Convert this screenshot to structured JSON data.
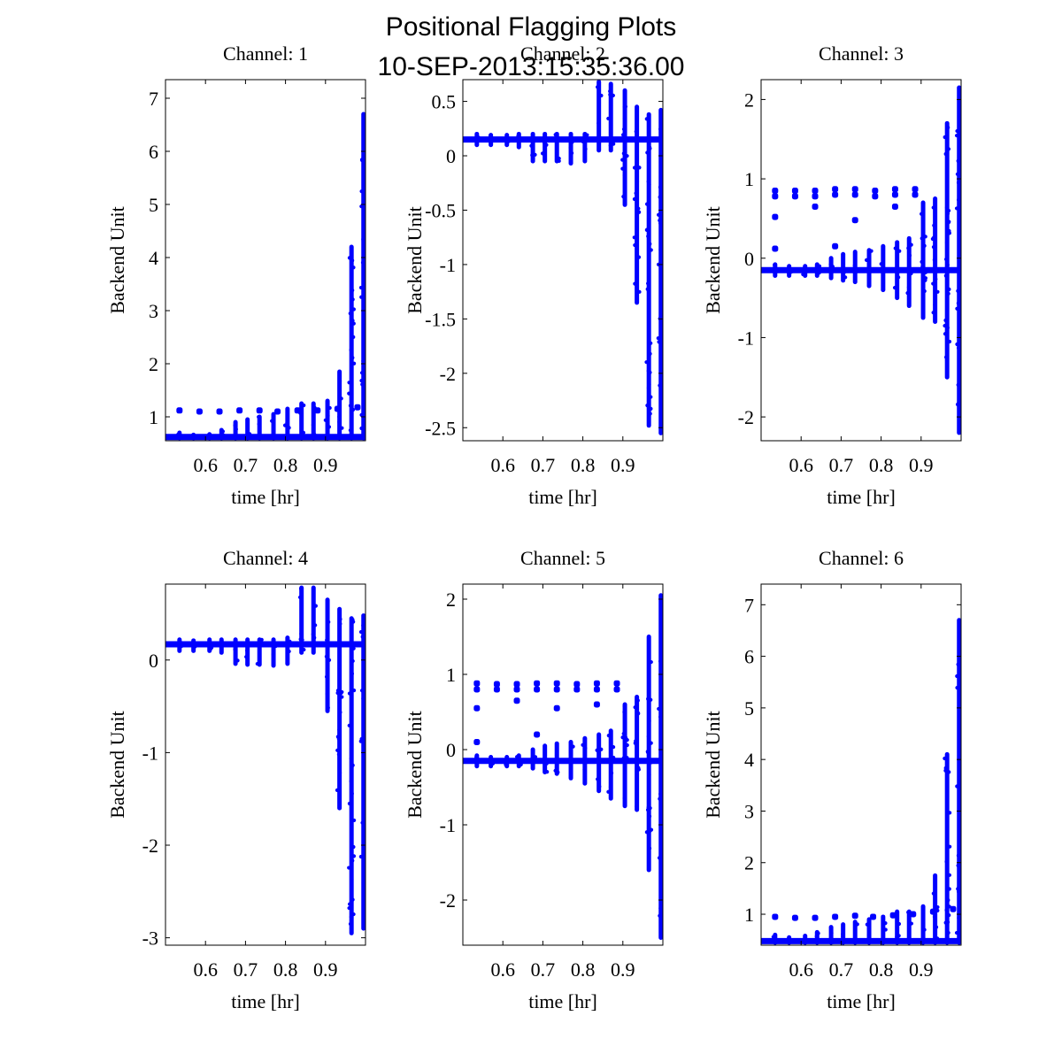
{
  "figure": {
    "title_line1": "Positional Flagging Plots",
    "title_line2": "10-SEP-2013:15:35:36.00"
  },
  "colors": {
    "series": "#0000ff",
    "axes": "#000000",
    "background": "#ffffff"
  },
  "chart_data": [
    {
      "type": "scatter",
      "title": "Channel: 1",
      "xlabel": "time [hr]",
      "ylabel": "Backend Unit",
      "xlim": [
        0.5,
        1.0
      ],
      "ylim": [
        0.55,
        7.35
      ],
      "xticks": [
        0.6,
        0.7,
        0.8,
        0.9
      ],
      "xtick_labels": [
        "0.6",
        "0.7",
        "0.8",
        "0.9"
      ],
      "yticks": [
        1,
        2,
        3,
        4,
        5,
        6,
        7
      ],
      "ytick_labels": [
        "1",
        "2",
        "3",
        "4",
        "5",
        "6",
        "7"
      ],
      "grid": false,
      "baseline": 0.62,
      "vertical_bursts": [
        {
          "x": 0.535,
          "low": 0.6,
          "high": 0.7
        },
        {
          "x": 0.57,
          "low": 0.6,
          "high": 0.66
        },
        {
          "x": 0.61,
          "low": 0.6,
          "high": 0.67
        },
        {
          "x": 0.64,
          "low": 0.6,
          "high": 0.75
        },
        {
          "x": 0.675,
          "low": 0.6,
          "high": 0.9
        },
        {
          "x": 0.705,
          "low": 0.6,
          "high": 0.95
        },
        {
          "x": 0.735,
          "low": 0.6,
          "high": 1.0
        },
        {
          "x": 0.77,
          "low": 0.6,
          "high": 1.05
        },
        {
          "x": 0.805,
          "low": 0.6,
          "high": 1.15
        },
        {
          "x": 0.84,
          "low": 0.6,
          "high": 1.25
        },
        {
          "x": 0.87,
          "low": 0.6,
          "high": 1.25
        },
        {
          "x": 0.905,
          "low": 0.6,
          "high": 1.3
        },
        {
          "x": 0.935,
          "low": 0.6,
          "high": 1.85
        },
        {
          "x": 0.965,
          "low": 0.6,
          "high": 4.2
        },
        {
          "x": 0.995,
          "low": 0.6,
          "high": 6.7
        }
      ],
      "outliers": [
        {
          "x": 0.535,
          "y": 1.12
        },
        {
          "x": 0.585,
          "y": 1.1
        },
        {
          "x": 0.635,
          "y": 1.1
        },
        {
          "x": 0.685,
          "y": 1.12
        },
        {
          "x": 0.735,
          "y": 1.12
        },
        {
          "x": 0.78,
          "y": 1.1
        },
        {
          "x": 0.83,
          "y": 1.12
        },
        {
          "x": 0.88,
          "y": 1.12
        },
        {
          "x": 0.93,
          "y": 1.15
        },
        {
          "x": 0.98,
          "y": 1.18
        }
      ]
    },
    {
      "type": "scatter",
      "title": "Channel: 2",
      "xlabel": "time [hr]",
      "ylabel": "Backend Unit",
      "xlim": [
        0.5,
        1.0
      ],
      "ylim": [
        -2.62,
        0.7
      ],
      "xticks": [
        0.6,
        0.7,
        0.8,
        0.9
      ],
      "xtick_labels": [
        "0.6",
        "0.7",
        "0.8",
        "0.9"
      ],
      "yticks": [
        0.5,
        0,
        -0.5,
        -1,
        -1.5,
        -2,
        -2.5
      ],
      "ytick_labels": [
        "0.5",
        "0",
        "-0.5",
        "-1",
        "-1.5",
        "-2",
        "-2.5"
      ],
      "grid": false,
      "baseline": 0.15,
      "vertical_bursts": [
        {
          "x": 0.535,
          "low": 0.1,
          "high": 0.2
        },
        {
          "x": 0.57,
          "low": 0.1,
          "high": 0.19
        },
        {
          "x": 0.61,
          "low": 0.1,
          "high": 0.19
        },
        {
          "x": 0.64,
          "low": 0.08,
          "high": 0.2
        },
        {
          "x": 0.675,
          "low": -0.05,
          "high": 0.2
        },
        {
          "x": 0.705,
          "low": -0.05,
          "high": 0.2
        },
        {
          "x": 0.735,
          "low": -0.05,
          "high": 0.2
        },
        {
          "x": 0.77,
          "low": -0.07,
          "high": 0.2
        },
        {
          "x": 0.805,
          "low": -0.05,
          "high": 0.2
        },
        {
          "x": 0.84,
          "low": 0.05,
          "high": 0.68
        },
        {
          "x": 0.87,
          "low": 0.05,
          "high": 0.66
        },
        {
          "x": 0.905,
          "low": -0.45,
          "high": 0.6
        },
        {
          "x": 0.935,
          "low": -1.35,
          "high": 0.45
        },
        {
          "x": 0.965,
          "low": -2.48,
          "high": 0.38
        },
        {
          "x": 0.995,
          "low": -2.55,
          "high": 0.42
        }
      ],
      "outliers": []
    },
    {
      "type": "scatter",
      "title": "Channel: 3",
      "xlabel": "time [hr]",
      "ylabel": "Backend Unit",
      "xlim": [
        0.5,
        1.0
      ],
      "ylim": [
        -2.3,
        2.25
      ],
      "xticks": [
        0.6,
        0.7,
        0.8,
        0.9
      ],
      "xtick_labels": [
        "0.6",
        "0.7",
        "0.8",
        "0.9"
      ],
      "yticks": [
        2,
        1,
        0,
        -1,
        -2
      ],
      "ytick_labels": [
        "2",
        "1",
        "0",
        "-1",
        "-2"
      ],
      "grid": false,
      "baseline": -0.15,
      "vertical_bursts": [
        {
          "x": 0.535,
          "low": -0.22,
          "high": -0.08
        },
        {
          "x": 0.57,
          "low": -0.22,
          "high": -0.1
        },
        {
          "x": 0.61,
          "low": -0.22,
          "high": -0.1
        },
        {
          "x": 0.64,
          "low": -0.22,
          "high": -0.08
        },
        {
          "x": 0.675,
          "low": -0.25,
          "high": 0.0
        },
        {
          "x": 0.705,
          "low": -0.28,
          "high": 0.05
        },
        {
          "x": 0.735,
          "low": -0.3,
          "high": 0.08
        },
        {
          "x": 0.77,
          "low": -0.35,
          "high": 0.1
        },
        {
          "x": 0.805,
          "low": -0.4,
          "high": 0.15
        },
        {
          "x": 0.84,
          "low": -0.5,
          "high": 0.2
        },
        {
          "x": 0.87,
          "low": -0.6,
          "high": 0.25
        },
        {
          "x": 0.905,
          "low": -0.75,
          "high": 0.7
        },
        {
          "x": 0.935,
          "low": -0.8,
          "high": 0.75
        },
        {
          "x": 0.965,
          "low": -1.5,
          "high": 1.7
        },
        {
          "x": 0.995,
          "low": -2.2,
          "high": 2.15
        }
      ],
      "outliers": [
        {
          "x": 0.535,
          "y": 0.85
        },
        {
          "x": 0.535,
          "y": 0.78
        },
        {
          "x": 0.585,
          "y": 0.85
        },
        {
          "x": 0.585,
          "y": 0.78
        },
        {
          "x": 0.635,
          "y": 0.85
        },
        {
          "x": 0.635,
          "y": 0.78
        },
        {
          "x": 0.685,
          "y": 0.87
        },
        {
          "x": 0.685,
          "y": 0.8
        },
        {
          "x": 0.735,
          "y": 0.87
        },
        {
          "x": 0.735,
          "y": 0.8
        },
        {
          "x": 0.785,
          "y": 0.85
        },
        {
          "x": 0.785,
          "y": 0.78
        },
        {
          "x": 0.835,
          "y": 0.87
        },
        {
          "x": 0.835,
          "y": 0.8
        },
        {
          "x": 0.885,
          "y": 0.87
        },
        {
          "x": 0.885,
          "y": 0.8
        },
        {
          "x": 0.535,
          "y": 0.52
        },
        {
          "x": 0.535,
          "y": 0.12
        },
        {
          "x": 0.635,
          "y": 0.65
        },
        {
          "x": 0.685,
          "y": 0.15
        },
        {
          "x": 0.735,
          "y": 0.48
        },
        {
          "x": 0.835,
          "y": 0.65
        }
      ]
    },
    {
      "type": "scatter",
      "title": "Channel: 4",
      "xlabel": "time [hr]",
      "ylabel": "Backend Unit",
      "xlim": [
        0.5,
        1.0
      ],
      "ylim": [
        -3.08,
        0.82
      ],
      "xticks": [
        0.6,
        0.7,
        0.8,
        0.9
      ],
      "xtick_labels": [
        "0.6",
        "0.7",
        "0.8",
        "0.9"
      ],
      "yticks": [
        0,
        -1,
        -2,
        -3
      ],
      "ytick_labels": [
        "0",
        "-1",
        "-2",
        "-3"
      ],
      "grid": false,
      "baseline": 0.17,
      "vertical_bursts": [
        {
          "x": 0.535,
          "low": 0.1,
          "high": 0.22
        },
        {
          "x": 0.57,
          "low": 0.1,
          "high": 0.21
        },
        {
          "x": 0.61,
          "low": 0.1,
          "high": 0.22
        },
        {
          "x": 0.64,
          "low": 0.08,
          "high": 0.22
        },
        {
          "x": 0.675,
          "low": -0.04,
          "high": 0.22
        },
        {
          "x": 0.705,
          "low": -0.05,
          "high": 0.22
        },
        {
          "x": 0.735,
          "low": -0.05,
          "high": 0.22
        },
        {
          "x": 0.77,
          "low": -0.06,
          "high": 0.22
        },
        {
          "x": 0.805,
          "low": -0.04,
          "high": 0.24
        },
        {
          "x": 0.84,
          "low": 0.08,
          "high": 0.78
        },
        {
          "x": 0.87,
          "low": 0.08,
          "high": 0.78
        },
        {
          "x": 0.905,
          "low": -0.55,
          "high": 0.65
        },
        {
          "x": 0.935,
          "low": -1.6,
          "high": 0.55
        },
        {
          "x": 0.965,
          "low": -2.95,
          "high": 0.45
        },
        {
          "x": 0.995,
          "low": -2.9,
          "high": 0.48
        }
      ],
      "outliers": []
    },
    {
      "type": "scatter",
      "title": "Channel: 5",
      "xlabel": "time [hr]",
      "ylabel": "Backend Unit",
      "xlim": [
        0.5,
        1.0
      ],
      "ylim": [
        -2.6,
        2.2
      ],
      "xticks": [
        0.6,
        0.7,
        0.8,
        0.9
      ],
      "xtick_labels": [
        "0.6",
        "0.7",
        "0.8",
        "0.9"
      ],
      "yticks": [
        2,
        1,
        0,
        -1,
        -2
      ],
      "ytick_labels": [
        "2",
        "1",
        "0",
        "-1",
        "-2"
      ],
      "grid": false,
      "baseline": -0.15,
      "vertical_bursts": [
        {
          "x": 0.535,
          "low": -0.22,
          "high": -0.08
        },
        {
          "x": 0.57,
          "low": -0.22,
          "high": -0.1
        },
        {
          "x": 0.61,
          "low": -0.22,
          "high": -0.1
        },
        {
          "x": 0.64,
          "low": -0.22,
          "high": -0.08
        },
        {
          "x": 0.675,
          "low": -0.25,
          "high": 0.0
        },
        {
          "x": 0.705,
          "low": -0.3,
          "high": 0.05
        },
        {
          "x": 0.735,
          "low": -0.32,
          "high": 0.08
        },
        {
          "x": 0.77,
          "low": -0.38,
          "high": 0.1
        },
        {
          "x": 0.805,
          "low": -0.45,
          "high": 0.15
        },
        {
          "x": 0.84,
          "low": -0.55,
          "high": 0.2
        },
        {
          "x": 0.87,
          "low": -0.65,
          "high": 0.25
        },
        {
          "x": 0.905,
          "low": -0.75,
          "high": 0.6
        },
        {
          "x": 0.935,
          "low": -0.8,
          "high": 0.7
        },
        {
          "x": 0.965,
          "low": -1.6,
          "high": 1.5
        },
        {
          "x": 0.995,
          "low": -2.5,
          "high": 2.05
        }
      ],
      "outliers": [
        {
          "x": 0.535,
          "y": 0.88
        },
        {
          "x": 0.535,
          "y": 0.8
        },
        {
          "x": 0.585,
          "y": 0.87
        },
        {
          "x": 0.585,
          "y": 0.8
        },
        {
          "x": 0.635,
          "y": 0.87
        },
        {
          "x": 0.635,
          "y": 0.8
        },
        {
          "x": 0.685,
          "y": 0.88
        },
        {
          "x": 0.685,
          "y": 0.8
        },
        {
          "x": 0.735,
          "y": 0.88
        },
        {
          "x": 0.735,
          "y": 0.8
        },
        {
          "x": 0.785,
          "y": 0.87
        },
        {
          "x": 0.785,
          "y": 0.8
        },
        {
          "x": 0.835,
          "y": 0.88
        },
        {
          "x": 0.835,
          "y": 0.8
        },
        {
          "x": 0.885,
          "y": 0.88
        },
        {
          "x": 0.885,
          "y": 0.8
        },
        {
          "x": 0.535,
          "y": 0.55
        },
        {
          "x": 0.535,
          "y": 0.1
        },
        {
          "x": 0.635,
          "y": 0.65
        },
        {
          "x": 0.685,
          "y": 0.2
        },
        {
          "x": 0.735,
          "y": 0.55
        },
        {
          "x": 0.835,
          "y": 0.6
        }
      ]
    },
    {
      "type": "scatter",
      "title": "Channel: 6",
      "xlabel": "time [hr]",
      "ylabel": "Backend Unit",
      "xlim": [
        0.5,
        1.0
      ],
      "ylim": [
        0.4,
        7.4
      ],
      "xticks": [
        0.6,
        0.7,
        0.8,
        0.9
      ],
      "xtick_labels": [
        "0.6",
        "0.7",
        "0.8",
        "0.9"
      ],
      "yticks": [
        1,
        2,
        3,
        4,
        5,
        6,
        7
      ],
      "ytick_labels": [
        "1",
        "2",
        "3",
        "4",
        "5",
        "6",
        "7"
      ],
      "grid": false,
      "baseline": 0.48,
      "vertical_bursts": [
        {
          "x": 0.535,
          "low": 0.45,
          "high": 0.6
        },
        {
          "x": 0.57,
          "low": 0.45,
          "high": 0.55
        },
        {
          "x": 0.61,
          "low": 0.45,
          "high": 0.58
        },
        {
          "x": 0.64,
          "low": 0.45,
          "high": 0.65
        },
        {
          "x": 0.675,
          "low": 0.45,
          "high": 0.75
        },
        {
          "x": 0.705,
          "low": 0.45,
          "high": 0.8
        },
        {
          "x": 0.735,
          "low": 0.45,
          "high": 0.85
        },
        {
          "x": 0.77,
          "low": 0.45,
          "high": 0.9
        },
        {
          "x": 0.805,
          "low": 0.45,
          "high": 0.95
        },
        {
          "x": 0.84,
          "low": 0.45,
          "high": 1.05
        },
        {
          "x": 0.87,
          "low": 0.45,
          "high": 1.05
        },
        {
          "x": 0.905,
          "low": 0.45,
          "high": 1.15
        },
        {
          "x": 0.935,
          "low": 0.45,
          "high": 1.75
        },
        {
          "x": 0.965,
          "low": 0.45,
          "high": 4.1
        },
        {
          "x": 0.995,
          "low": 0.45,
          "high": 6.7
        }
      ],
      "outliers": [
        {
          "x": 0.535,
          "y": 0.95
        },
        {
          "x": 0.585,
          "y": 0.93
        },
        {
          "x": 0.635,
          "y": 0.93
        },
        {
          "x": 0.685,
          "y": 0.95
        },
        {
          "x": 0.735,
          "y": 0.97
        },
        {
          "x": 0.78,
          "y": 0.95
        },
        {
          "x": 0.83,
          "y": 0.98
        },
        {
          "x": 0.88,
          "y": 1.0
        },
        {
          "x": 0.93,
          "y": 1.05
        },
        {
          "x": 0.98,
          "y": 1.1
        }
      ]
    }
  ]
}
